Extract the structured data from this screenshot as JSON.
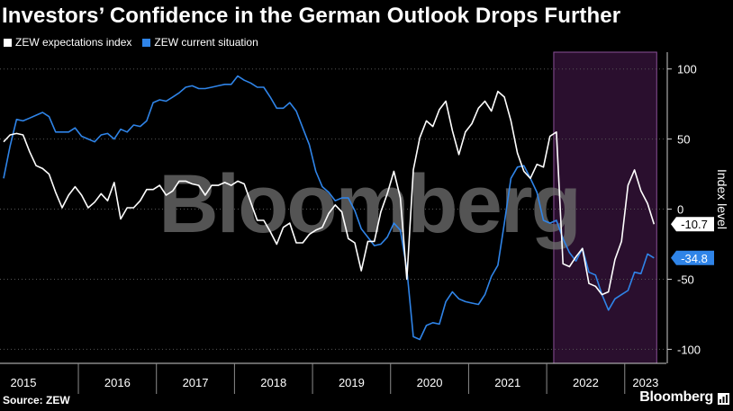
{
  "title": "Investors’ Confidence in the German Outlook Drops Further",
  "source": "Source: ZEW",
  "brand": "Bloomberg",
  "watermark": "Bloomberg",
  "colors": {
    "expectations": "#ffffff",
    "current": "#2f84e8",
    "highlight": "#2a0f2e",
    "highlight_border": "#8a4f97",
    "grid": "#555555"
  },
  "chart_data": {
    "type": "line",
    "ylabel": "Index level",
    "ylim": [
      -110,
      112
    ],
    "y_ticks": [
      100,
      50,
      0,
      -50,
      -100
    ],
    "y_tick_labels": [
      "100",
      "50",
      "0",
      "-50",
      "-100"
    ],
    "x_range": [
      "2015-01",
      "2023-06"
    ],
    "x_tick_labels": [
      "2015",
      "2016",
      "2017",
      "2018",
      "2019",
      "2020",
      "2021",
      "2022",
      "2023"
    ],
    "highlight": {
      "from": "2022-02",
      "to": "2023-05"
    },
    "series": [
      {
        "name": "ZEW expectations index",
        "end_label": "-10.7",
        "points": [
          [
            "2015-01",
            48
          ],
          [
            "2015-02",
            53
          ],
          [
            "2015-03",
            54
          ],
          [
            "2015-04",
            53
          ],
          [
            "2015-05",
            41
          ],
          [
            "2015-06",
            31
          ],
          [
            "2015-07",
            29
          ],
          [
            "2015-08",
            25
          ],
          [
            "2015-09",
            12
          ],
          [
            "2015-10",
            1
          ],
          [
            "2015-11",
            10
          ],
          [
            "2015-12",
            16
          ],
          [
            "2016-01",
            10
          ],
          [
            "2016-02",
            1
          ],
          [
            "2016-03",
            5
          ],
          [
            "2016-04",
            11
          ],
          [
            "2016-05",
            6
          ],
          [
            "2016-06",
            19
          ],
          [
            "2016-07",
            -7
          ],
          [
            "2016-08",
            1
          ],
          [
            "2016-09",
            1
          ],
          [
            "2016-10",
            6
          ],
          [
            "2016-11",
            14
          ],
          [
            "2016-12",
            14
          ],
          [
            "2017-01",
            17
          ],
          [
            "2017-02",
            10
          ],
          [
            "2017-03",
            13
          ],
          [
            "2017-04",
            20
          ],
          [
            "2017-05",
            20
          ],
          [
            "2017-06",
            18
          ],
          [
            "2017-07",
            17
          ],
          [
            "2017-08",
            10
          ],
          [
            "2017-09",
            17
          ],
          [
            "2017-10",
            17
          ],
          [
            "2017-11",
            19
          ],
          [
            "2017-12",
            17
          ],
          [
            "2018-01",
            20
          ],
          [
            "2018-02",
            18
          ],
          [
            "2018-03",
            5
          ],
          [
            "2018-04",
            -8
          ],
          [
            "2018-05",
            -8
          ],
          [
            "2018-06",
            -16
          ],
          [
            "2018-07",
            -25
          ],
          [
            "2018-08",
            -13
          ],
          [
            "2018-09",
            -10
          ],
          [
            "2018-10",
            -24
          ],
          [
            "2018-11",
            -24
          ],
          [
            "2018-12",
            -18
          ],
          [
            "2019-01",
            -15
          ],
          [
            "2019-02",
            -13
          ],
          [
            "2019-03",
            -3
          ],
          [
            "2019-04",
            3
          ],
          [
            "2019-05",
            -2
          ],
          [
            "2019-06",
            -21
          ],
          [
            "2019-07",
            -24
          ],
          [
            "2019-08",
            -44
          ],
          [
            "2019-09",
            -23
          ],
          [
            "2019-10",
            -23
          ],
          [
            "2019-11",
            -2
          ],
          [
            "2019-12",
            11
          ],
          [
            "2020-01",
            27
          ],
          [
            "2020-02",
            8
          ],
          [
            "2020-03",
            -50
          ],
          [
            "2020-04",
            28
          ],
          [
            "2020-05",
            51
          ],
          [
            "2020-06",
            63
          ],
          [
            "2020-07",
            59
          ],
          [
            "2020-08",
            71
          ],
          [
            "2020-09",
            77
          ],
          [
            "2020-10",
            56
          ],
          [
            "2020-11",
            39
          ],
          [
            "2020-12",
            55
          ],
          [
            "2021-01",
            61
          ],
          [
            "2021-02",
            72
          ],
          [
            "2021-03",
            77
          ],
          [
            "2021-04",
            70
          ],
          [
            "2021-05",
            84
          ],
          [
            "2021-06",
            80
          ],
          [
            "2021-07",
            63
          ],
          [
            "2021-08",
            40
          ],
          [
            "2021-09",
            27
          ],
          [
            "2021-10",
            22
          ],
          [
            "2021-11",
            32
          ],
          [
            "2021-12",
            30
          ],
          [
            "2022-01",
            52
          ],
          [
            "2022-02",
            55
          ],
          [
            "2022-03",
            -39
          ],
          [
            "2022-04",
            -41
          ],
          [
            "2022-05",
            -34
          ],
          [
            "2022-06",
            -28
          ],
          [
            "2022-07",
            -53
          ],
          [
            "2022-08",
            -55
          ],
          [
            "2022-09",
            -61
          ],
          [
            "2022-10",
            -59
          ],
          [
            "2022-11",
            -36
          ],
          [
            "2022-12",
            -23
          ],
          [
            "2023-01",
            17
          ],
          [
            "2023-02",
            28
          ],
          [
            "2023-03",
            13
          ],
          [
            "2023-04",
            4
          ],
          [
            "2023-05",
            -10.7
          ]
        ]
      },
      {
        "name": "ZEW current situation",
        "end_label": "-34.8",
        "points": [
          [
            "2015-01",
            22
          ],
          [
            "2015-02",
            45
          ],
          [
            "2015-03",
            64
          ],
          [
            "2015-04",
            63
          ],
          [
            "2015-05",
            65
          ],
          [
            "2015-06",
            67
          ],
          [
            "2015-07",
            69
          ],
          [
            "2015-08",
            66
          ],
          [
            "2015-09",
            55
          ],
          [
            "2015-10",
            55
          ],
          [
            "2015-11",
            55
          ],
          [
            "2015-12",
            58
          ],
          [
            "2016-01",
            52
          ],
          [
            "2016-02",
            50
          ],
          [
            "2016-03",
            48
          ],
          [
            "2016-04",
            53
          ],
          [
            "2016-05",
            54
          ],
          [
            "2016-06",
            50
          ],
          [
            "2016-07",
            57
          ],
          [
            "2016-08",
            55
          ],
          [
            "2016-09",
            60
          ],
          [
            "2016-10",
            59
          ],
          [
            "2016-11",
            63
          ],
          [
            "2016-12",
            76
          ],
          [
            "2017-01",
            78
          ],
          [
            "2017-02",
            77
          ],
          [
            "2017-03",
            80
          ],
          [
            "2017-04",
            83
          ],
          [
            "2017-05",
            87
          ],
          [
            "2017-06",
            88
          ],
          [
            "2017-07",
            86
          ],
          [
            "2017-08",
            86
          ],
          [
            "2017-09",
            87
          ],
          [
            "2017-10",
            88
          ],
          [
            "2017-11",
            89
          ],
          [
            "2017-12",
            89
          ],
          [
            "2018-01",
            95
          ],
          [
            "2018-02",
            92
          ],
          [
            "2018-03",
            90
          ],
          [
            "2018-04",
            87
          ],
          [
            "2018-05",
            87
          ],
          [
            "2018-06",
            80
          ],
          [
            "2018-07",
            72
          ],
          [
            "2018-08",
            72
          ],
          [
            "2018-09",
            76
          ],
          [
            "2018-10",
            70
          ],
          [
            "2018-11",
            58
          ],
          [
            "2018-12",
            46
          ],
          [
            "2019-01",
            27
          ],
          [
            "2019-02",
            16
          ],
          [
            "2019-03",
            12
          ],
          [
            "2019-04",
            6
          ],
          [
            "2019-05",
            8
          ],
          [
            "2019-06",
            8
          ],
          [
            "2019-07",
            -1
          ],
          [
            "2019-08",
            -14
          ],
          [
            "2019-09",
            -20
          ],
          [
            "2019-10",
            -26
          ],
          [
            "2019-11",
            -25
          ],
          [
            "2019-12",
            -20
          ],
          [
            "2020-01",
            -10
          ],
          [
            "2020-02",
            -15
          ],
          [
            "2020-03",
            -43
          ],
          [
            "2020-04",
            -91
          ],
          [
            "2020-05",
            -93
          ],
          [
            "2020-06",
            -83
          ],
          [
            "2020-07",
            -81
          ],
          [
            "2020-08",
            -82
          ],
          [
            "2020-09",
            -66
          ],
          [
            "2020-10",
            -59
          ],
          [
            "2020-11",
            -64
          ],
          [
            "2020-12",
            -66
          ],
          [
            "2021-01",
            -67
          ],
          [
            "2021-02",
            -68
          ],
          [
            "2021-03",
            -61
          ],
          [
            "2021-04",
            -48
          ],
          [
            "2021-05",
            -40
          ],
          [
            "2021-06",
            -10
          ],
          [
            "2021-07",
            22
          ],
          [
            "2021-08",
            30
          ],
          [
            "2021-09",
            31
          ],
          [
            "2021-10",
            22
          ],
          [
            "2021-11",
            12
          ],
          [
            "2021-12",
            -8
          ],
          [
            "2022-01",
            -10
          ],
          [
            "2022-02",
            -8
          ],
          [
            "2022-03",
            -21
          ],
          [
            "2022-04",
            -31
          ],
          [
            "2022-05",
            -37
          ],
          [
            "2022-06",
            -28
          ],
          [
            "2022-07",
            -45
          ],
          [
            "2022-08",
            -47
          ],
          [
            "2022-09",
            -61
          ],
          [
            "2022-10",
            -72
          ],
          [
            "2022-11",
            -64
          ],
          [
            "2022-12",
            -61
          ],
          [
            "2023-01",
            -58
          ],
          [
            "2023-02",
            -45
          ],
          [
            "2023-03",
            -46
          ],
          [
            "2023-04",
            -32
          ],
          [
            "2023-05",
            -34.8
          ]
        ]
      }
    ]
  }
}
